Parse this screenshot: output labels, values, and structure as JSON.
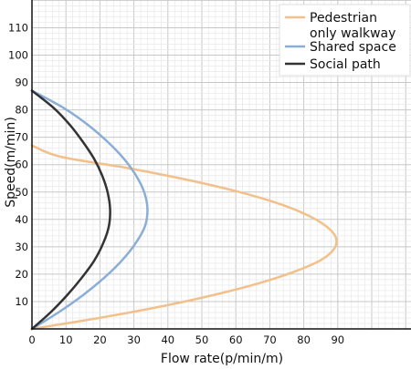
{
  "chart_data": {
    "type": "line",
    "xlabel": "Flow rate(p/min/m)",
    "ylabel": "Speed(m/min)",
    "xlim": [
      0,
      100
    ],
    "ylim": [
      0,
      120
    ],
    "x_ticks": [
      "0",
      "10",
      "20",
      "30",
      "40",
      "50",
      "60",
      "70",
      "80",
      "90"
    ],
    "y_ticks": [
      "10",
      "20",
      "30",
      "40",
      "50",
      "60",
      "70",
      "80",
      "90",
      "100",
      "110"
    ],
    "grid": true,
    "legend_position": "top-right",
    "series": [
      {
        "name": "Pedestrian only walkway",
        "name_lines": [
          "Pedestrian",
          "only walkway"
        ],
        "color": "#f2c08a",
        "x": [
          0,
          20.7,
          38.8,
          54.2,
          67.1,
          77.4,
          85.1,
          89.0,
          89.4,
          86.4,
          80.5,
          71.8,
          60.1,
          45.6,
          28.4,
          8.4,
          0
        ],
        "y": [
          0,
          4.2,
          8.4,
          12.6,
          16.8,
          21.0,
          25.2,
          29.4,
          33.5,
          37.7,
          41.9,
          46.1,
          50.3,
          54.5,
          58.7,
          62.9,
          67.0
        ]
      },
      {
        "name": "Shared space",
        "color": "#8aaed6",
        "x": [
          0,
          8.0,
          15.1,
          21.2,
          26.4,
          30.4,
          33.2,
          34.0,
          33.1,
          30.7,
          27.1,
          22.3,
          16.4,
          9.2,
          0
        ],
        "y": [
          0,
          6.2,
          12.4,
          18.6,
          24.9,
          31.1,
          37.3,
          43.5,
          49.7,
          55.9,
          62.1,
          68.3,
          74.6,
          80.8,
          87.0
        ]
      },
      {
        "name": "Social path",
        "color": "#333333",
        "x": [
          0,
          5.6,
          10.4,
          14.6,
          18.3,
          20.9,
          22.6,
          23.0,
          22.3,
          20.7,
          18.3,
          15.0,
          11.1,
          6.3,
          0
        ],
        "y": [
          0,
          6.2,
          12.4,
          18.6,
          24.9,
          31.1,
          37.3,
          43.5,
          49.7,
          55.9,
          62.1,
          68.3,
          74.6,
          80.8,
          87.0
        ]
      }
    ]
  }
}
